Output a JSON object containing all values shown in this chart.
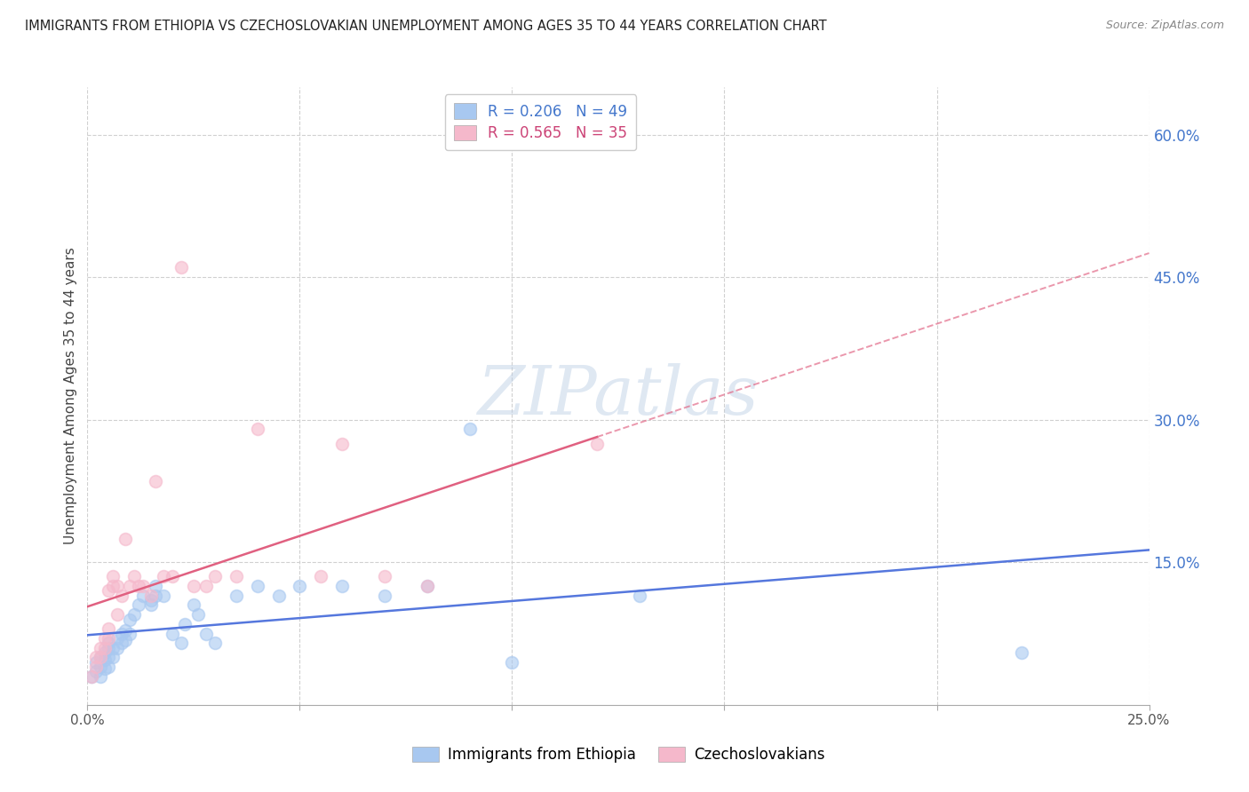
{
  "title": "IMMIGRANTS FROM ETHIOPIA VS CZECHOSLOVAKIAN UNEMPLOYMENT AMONG AGES 35 TO 44 YEARS CORRELATION CHART",
  "source": "Source: ZipAtlas.com",
  "ylabel": "Unemployment Among Ages 35 to 44 years",
  "xlim": [
    0.0,
    0.25
  ],
  "ylim": [
    0.0,
    0.65
  ],
  "xticks": [
    0.0,
    0.05,
    0.1,
    0.15,
    0.2,
    0.25
  ],
  "xtick_labels": [
    "0.0%",
    "",
    "",
    "",
    "",
    "25.0%"
  ],
  "ytick_labels_right": [
    "15.0%",
    "30.0%",
    "45.0%",
    "60.0%"
  ],
  "yticks_right": [
    0.15,
    0.3,
    0.45,
    0.6
  ],
  "blue_R": "0.206",
  "blue_N": "49",
  "pink_R": "0.565",
  "pink_N": "35",
  "blue_color": "#a8c8f0",
  "pink_color": "#f5b8cb",
  "blue_line_color": "#5577dd",
  "pink_line_color": "#e06080",
  "blue_scatter_x": [
    0.001,
    0.002,
    0.002,
    0.003,
    0.003,
    0.003,
    0.004,
    0.004,
    0.004,
    0.005,
    0.005,
    0.005,
    0.005,
    0.006,
    0.006,
    0.007,
    0.007,
    0.008,
    0.008,
    0.009,
    0.009,
    0.01,
    0.01,
    0.011,
    0.012,
    0.013,
    0.015,
    0.015,
    0.016,
    0.016,
    0.018,
    0.02,
    0.022,
    0.023,
    0.025,
    0.026,
    0.028,
    0.03,
    0.035,
    0.04,
    0.045,
    0.05,
    0.06,
    0.07,
    0.08,
    0.09,
    0.1,
    0.22,
    0.13
  ],
  "blue_scatter_y": [
    0.03,
    0.035,
    0.045,
    0.03,
    0.04,
    0.05,
    0.038,
    0.048,
    0.055,
    0.04,
    0.05,
    0.06,
    0.065,
    0.05,
    0.06,
    0.06,
    0.07,
    0.065,
    0.075,
    0.068,
    0.078,
    0.075,
    0.09,
    0.095,
    0.105,
    0.115,
    0.11,
    0.105,
    0.115,
    0.125,
    0.115,
    0.075,
    0.065,
    0.085,
    0.105,
    0.095,
    0.075,
    0.065,
    0.115,
    0.125,
    0.115,
    0.125,
    0.125,
    0.115,
    0.125,
    0.29,
    0.045,
    0.055,
    0.115
  ],
  "pink_scatter_x": [
    0.001,
    0.002,
    0.002,
    0.003,
    0.003,
    0.004,
    0.004,
    0.005,
    0.005,
    0.005,
    0.006,
    0.006,
    0.007,
    0.007,
    0.008,
    0.009,
    0.01,
    0.011,
    0.012,
    0.013,
    0.015,
    0.016,
    0.018,
    0.02,
    0.022,
    0.025,
    0.028,
    0.03,
    0.035,
    0.04,
    0.055,
    0.06,
    0.07,
    0.08,
    0.12
  ],
  "pink_scatter_y": [
    0.03,
    0.04,
    0.05,
    0.05,
    0.06,
    0.06,
    0.07,
    0.07,
    0.08,
    0.12,
    0.125,
    0.135,
    0.095,
    0.125,
    0.115,
    0.175,
    0.125,
    0.135,
    0.125,
    0.125,
    0.115,
    0.235,
    0.135,
    0.135,
    0.46,
    0.125,
    0.125,
    0.135,
    0.135,
    0.29,
    0.135,
    0.275,
    0.135,
    0.125,
    0.275
  ],
  "watermark": "ZIPatlas",
  "background_color": "#ffffff",
  "grid_color": "#d0d0d0"
}
